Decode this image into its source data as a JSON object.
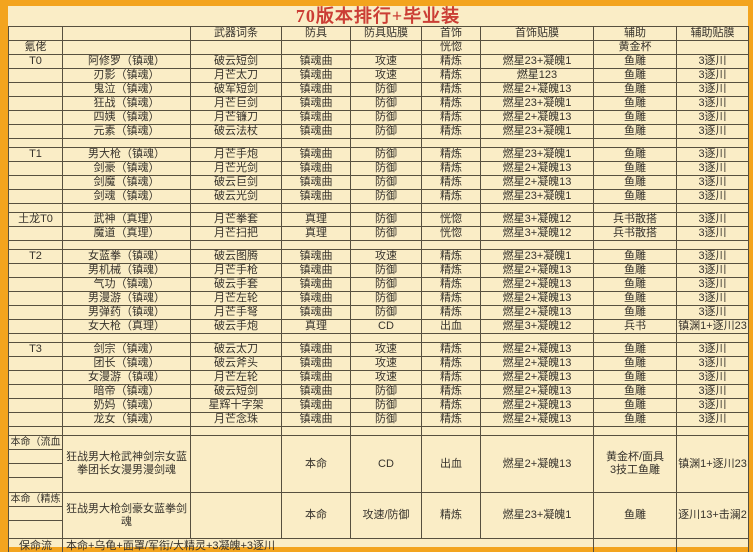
{
  "title": "70版本排行+毕业装",
  "colors": {
    "frame": "#F3A41E",
    "background": "#FAEDC6",
    "border": "#57503F",
    "text": "#37332C",
    "title_text": "#CB3E35"
  },
  "columns": [
    "",
    "",
    "武器词条",
    "防具",
    "防具贴膜",
    "首饰",
    "首饰贴膜",
    "辅助",
    "辅助贴膜"
  ],
  "body": [
    {
      "type": "row",
      "cells": [
        "氪佬",
        "",
        "",
        "",
        "",
        "恍惚",
        "",
        "黄金杯",
        ""
      ]
    },
    {
      "type": "row",
      "cells": [
        "T0",
        "阿修罗（镇魂）",
        "破云短剑",
        "镇魂曲",
        "攻速",
        "精炼",
        "燃星23+凝魄1",
        "鱼雕",
        "3逐川"
      ]
    },
    {
      "type": "row",
      "cells": [
        "",
        "刃影（镇魂）",
        "月芒太刀",
        "镇魂曲",
        "攻速",
        "精炼",
        "燃星123",
        "鱼雕",
        "3逐川"
      ]
    },
    {
      "type": "row",
      "cells": [
        "",
        "鬼泣（镇魂）",
        "破军短剑",
        "镇魂曲",
        "防御",
        "精炼",
        "燃星2+凝魄13",
        "鱼雕",
        "3逐川"
      ]
    },
    {
      "type": "row",
      "cells": [
        "",
        "狂战（镇魂）",
        "月芒巨剑",
        "镇魂曲",
        "防御",
        "精炼",
        "燃星23+凝魄1",
        "鱼雕",
        "3逐川"
      ]
    },
    {
      "type": "row",
      "cells": [
        "",
        "四姨（镇魂）",
        "月芒镰刀",
        "镇魂曲",
        "防御",
        "精炼",
        "燃星2+凝魄13",
        "鱼雕",
        "3逐川"
      ]
    },
    {
      "type": "row",
      "cells": [
        "",
        "元素（镇魂）",
        "破云法杖",
        "镇魂曲",
        "防御",
        "精炼",
        "燃星23+凝魄1",
        "鱼雕",
        "3逐川"
      ]
    },
    {
      "type": "spacer"
    },
    {
      "type": "row",
      "cells": [
        "T1",
        "男大枪（镇魂）",
        "月芒手炮",
        "镇魂曲",
        "防御",
        "精炼",
        "燃星23+凝魄1",
        "鱼雕",
        "3逐川"
      ]
    },
    {
      "type": "row",
      "cells": [
        "",
        "剑豪（镇魂）",
        "月芒光剑",
        "镇魂曲",
        "防御",
        "精炼",
        "燃星2+凝魄13",
        "鱼雕",
        "3逐川"
      ]
    },
    {
      "type": "row",
      "cells": [
        "",
        "剑魔（镇魂）",
        "破云巨剑",
        "镇魂曲",
        "防御",
        "精炼",
        "燃星2+凝魄13",
        "鱼雕",
        "3逐川"
      ]
    },
    {
      "type": "row",
      "cells": [
        "",
        "剑魂（镇魂）",
        "破云光剑",
        "镇魂曲",
        "防御",
        "精炼",
        "燃星23+凝魄1",
        "鱼雕",
        "3逐川"
      ]
    },
    {
      "type": "spacer"
    },
    {
      "type": "row",
      "cells": [
        "土龙T0",
        "武神（真理）",
        "月芒拳套",
        "真理",
        "防御",
        "恍惚",
        "燃星3+凝魄12",
        "兵书散搭",
        "3逐川"
      ]
    },
    {
      "type": "row",
      "cells": [
        "",
        "魔道（真理）",
        "月芒扫把",
        "真理",
        "防御",
        "恍惚",
        "燃星3+凝魄12",
        "兵书散搭",
        "3逐川"
      ]
    },
    {
      "type": "spacer"
    },
    {
      "type": "row",
      "cells": [
        "T2",
        "女蓝拳（镇魂）",
        "破云图腾",
        "镇魂曲",
        "攻速",
        "精炼",
        "燃星23+凝魄1",
        "鱼雕",
        "3逐川"
      ]
    },
    {
      "type": "row",
      "cells": [
        "",
        "男机械（镇魂）",
        "月芒手枪",
        "镇魂曲",
        "防御",
        "精炼",
        "燃星2+凝魄13",
        "鱼雕",
        "3逐川"
      ]
    },
    {
      "type": "row",
      "cells": [
        "",
        "气功（镇魂）",
        "破云手套",
        "镇魂曲",
        "防御",
        "精炼",
        "燃星2+凝魄13",
        "鱼雕",
        "3逐川"
      ]
    },
    {
      "type": "row",
      "cells": [
        "",
        "男漫游（镇魂）",
        "月芒左轮",
        "镇魂曲",
        "防御",
        "精炼",
        "燃星2+凝魄13",
        "鱼雕",
        "3逐川"
      ]
    },
    {
      "type": "row",
      "cells": [
        "",
        "男弹药（镇魂）",
        "月芒手弩",
        "镇魂曲",
        "防御",
        "精炼",
        "燃星2+凝魄13",
        "鱼雕",
        "3逐川"
      ]
    },
    {
      "type": "row",
      "cells": [
        "",
        "女大枪（真理）",
        "破云手炮",
        "真理",
        "CD",
        "出血",
        "燃星3+凝魄12",
        "兵书",
        "镇渊1+逐川23"
      ]
    },
    {
      "type": "spacer"
    },
    {
      "type": "row",
      "cells": [
        "T3",
        "剑宗（镇魂）",
        "破云太刀",
        "镇魂曲",
        "攻速",
        "精炼",
        "燃星2+凝魄13",
        "鱼雕",
        "3逐川"
      ]
    },
    {
      "type": "row",
      "cells": [
        "",
        "团长（镇魂）",
        "破云斧头",
        "镇魂曲",
        "攻速",
        "精炼",
        "燃星2+凝魄13",
        "鱼雕",
        "3逐川"
      ]
    },
    {
      "type": "row",
      "cells": [
        "",
        "女漫游（镇魂）",
        "月芒左轮",
        "镇魂曲",
        "攻速",
        "精炼",
        "燃星2+凝魄13",
        "鱼雕",
        "3逐川"
      ]
    },
    {
      "type": "row",
      "cells": [
        "",
        "暗帝（镇魂）",
        "破云短剑",
        "镇魂曲",
        "防御",
        "精炼",
        "燃星2+凝魄13",
        "鱼雕",
        "3逐川"
      ]
    },
    {
      "type": "row",
      "cells": [
        "",
        "奶妈（镇魂）",
        "星辉十字架",
        "镇魂曲",
        "防御",
        "精炼",
        "燃星2+凝魄13",
        "鱼雕",
        "3逐川"
      ]
    },
    {
      "type": "row",
      "cells": [
        "",
        "龙女（镇魂）",
        "月芒念珠",
        "镇魂曲",
        "防御",
        "精炼",
        "燃星2+凝魄13",
        "鱼雕",
        "3逐川"
      ]
    },
    {
      "type": "spacer"
    },
    {
      "type": "block",
      "label": "本命（流血",
      "sub_rows": 3,
      "height": 56,
      "cells": [
        "狂战男大枪武神剑宗女蓝拳团长女漫男漫剑魂",
        "",
        "本命",
        "CD",
        "出血",
        "燃星2+凝魄13",
        "黄金杯/面具\n3技工鱼雕",
        "镇渊1+逐川23"
      ]
    },
    {
      "type": "block",
      "label": "本命（精炼",
      "sub_rows": 2,
      "height": 46,
      "cells": [
        "狂战男大枪剑豪女蓝拳剑魂",
        "",
        "本命",
        "攻速/防御",
        "精炼",
        "燃星23+凝魄1",
        "鱼雕",
        "逐川13+击澜2"
      ]
    },
    {
      "type": "footer",
      "label": "保命流",
      "text": "本命+乌龟+面罩/军衔/大精灵+3凝魄+3逐川"
    }
  ]
}
